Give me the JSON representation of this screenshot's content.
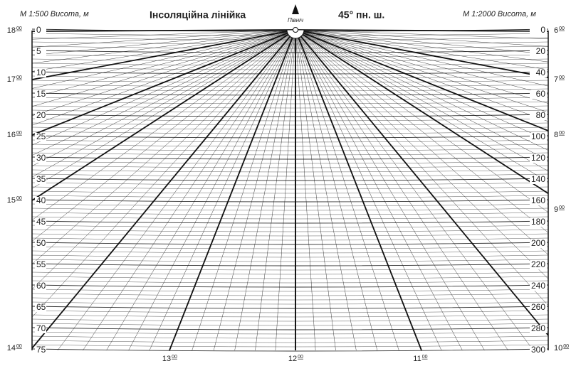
{
  "header": {
    "left_scale_title": "M 1:500  Висота, м",
    "title": "Інсоляційна лінійка",
    "north": "Північ",
    "latitude": "45° пн. ш.",
    "right_scale_title": "M 1:2000 Висота, м"
  },
  "left_scale": [
    "0",
    "5",
    "10",
    "15",
    "20",
    "25",
    "30",
    "35",
    "40",
    "45",
    "50",
    "55",
    "60",
    "65",
    "70",
    "75"
  ],
  "right_scale": [
    "0",
    "20",
    "40",
    "60",
    "80",
    "100",
    "120",
    "140",
    "160",
    "180",
    "200",
    "220",
    "240",
    "260",
    "280",
    "300"
  ],
  "hours_left": [
    {
      "hour": "18",
      "min": "00"
    },
    {
      "hour": "17",
      "min": "00"
    },
    {
      "hour": "16",
      "min": "00"
    },
    {
      "hour": "15",
      "min": "00"
    },
    {
      "hour": "14",
      "min": "00"
    }
  ],
  "hours_right": [
    {
      "hour": "6",
      "min": "00"
    },
    {
      "hour": "7",
      "min": "00"
    },
    {
      "hour": "8",
      "min": "00"
    },
    {
      "hour": "9",
      "min": "00"
    },
    {
      "hour": "10",
      "min": "00"
    }
  ],
  "hours_bottom": [
    {
      "hour": "13",
      "min": "00"
    },
    {
      "hour": "12",
      "min": "00"
    },
    {
      "hour": "11",
      "min": "00"
    }
  ]
}
